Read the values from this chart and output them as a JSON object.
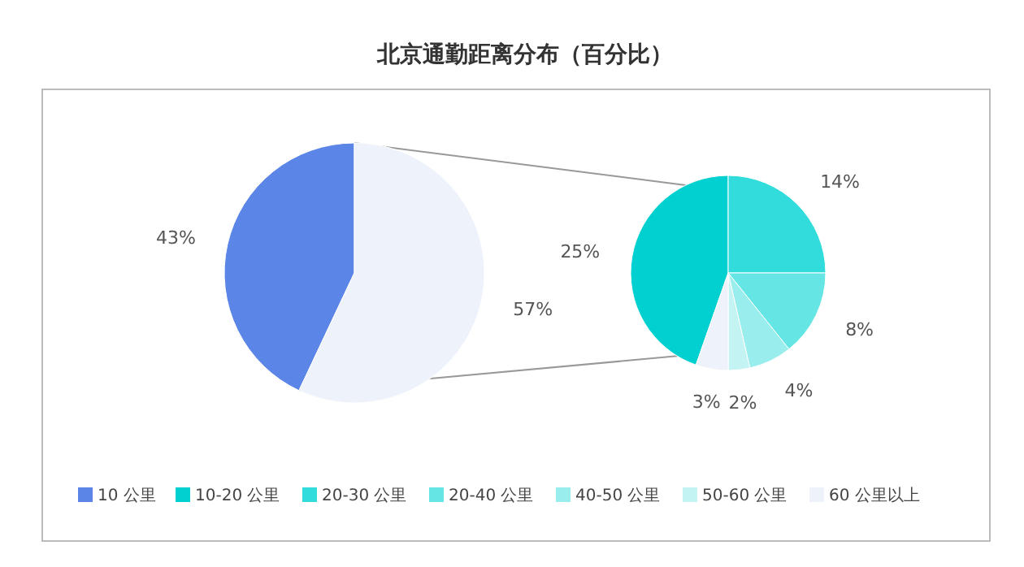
{
  "chart_data": [
    {
      "type": "pie",
      "title": "北京通勤距离分布（百分比）",
      "categories": [
        "10 公里",
        null
      ],
      "values": [
        43,
        57
      ],
      "colors": [
        "#5b85e6",
        "#edf2fb"
      ],
      "value_labels": [
        "43%",
        "57%"
      ],
      "legend": "bottom"
    },
    {
      "type": "pie",
      "categories": [
        "10-20 公里",
        "20-30 公里",
        "20-40 公里",
        "40-50 公里",
        "50-60 公里",
        "60 公里以上"
      ],
      "values": [
        25,
        14,
        8,
        4,
        2,
        3
      ],
      "colors": [
        "#00d0d0",
        "#33dcdc",
        "#66e5e5",
        "#99eded",
        "#c4f3f3",
        "#eef2fb"
      ],
      "value_labels": [
        "25%",
        "14%",
        "8%",
        "4%",
        "2%",
        "3%"
      ],
      "legend": "bottom"
    }
  ]
}
